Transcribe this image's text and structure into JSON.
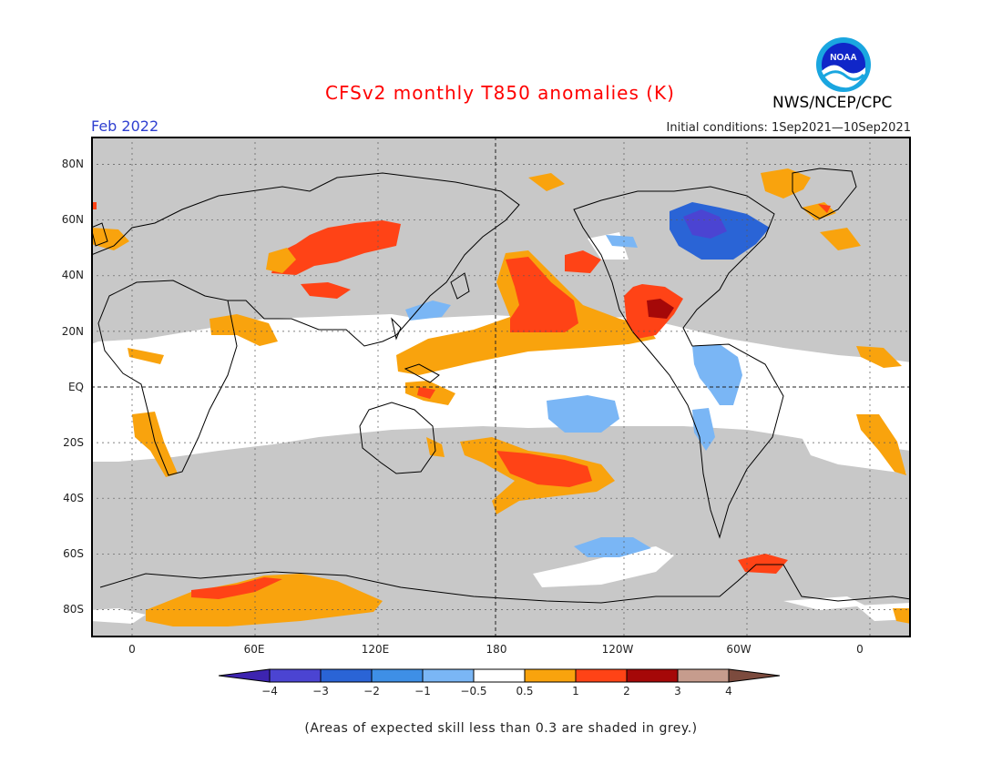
{
  "header": {
    "title": "CFSv2 monthly T850 anomalies (K)",
    "organization": "NWS/NCEP/CPC",
    "logo_text": "NOAA",
    "month": "Feb 2022",
    "initial_conditions": "Initial conditions: 1Sep2021—10Sep2021"
  },
  "map": {
    "lat_labels": [
      "80N",
      "60N",
      "40N",
      "20N",
      "EQ",
      "20S",
      "40S",
      "60S",
      "80S"
    ],
    "lon_labels": [
      "0",
      "60E",
      "120E",
      "180",
      "120W",
      "60W",
      "0"
    ],
    "lon_range": [
      -20,
      380
    ],
    "lat_range": [
      -90,
      90
    ]
  },
  "colorbar": {
    "labels": [
      "−4",
      "−3",
      "−2",
      "−1",
      "−0.5",
      "0.5",
      "1",
      "2",
      "3",
      "4"
    ],
    "colors": [
      "#3d24b0",
      "#4b44d2",
      "#2a64d6",
      "#3e8fe6",
      "#7ab6f5",
      "#ffffff",
      "#f9a30d",
      "#ff4316",
      "#a50808",
      "#c69c8d",
      "#7c4b3e"
    ]
  },
  "legend_note": "(Areas of expected skill less than 0.3 are shaded in grey.)",
  "colors": {
    "no_skill_grey": "#c8c8c8",
    "title_red": "#ff0000",
    "month_blue": "#2f3fd0"
  }
}
